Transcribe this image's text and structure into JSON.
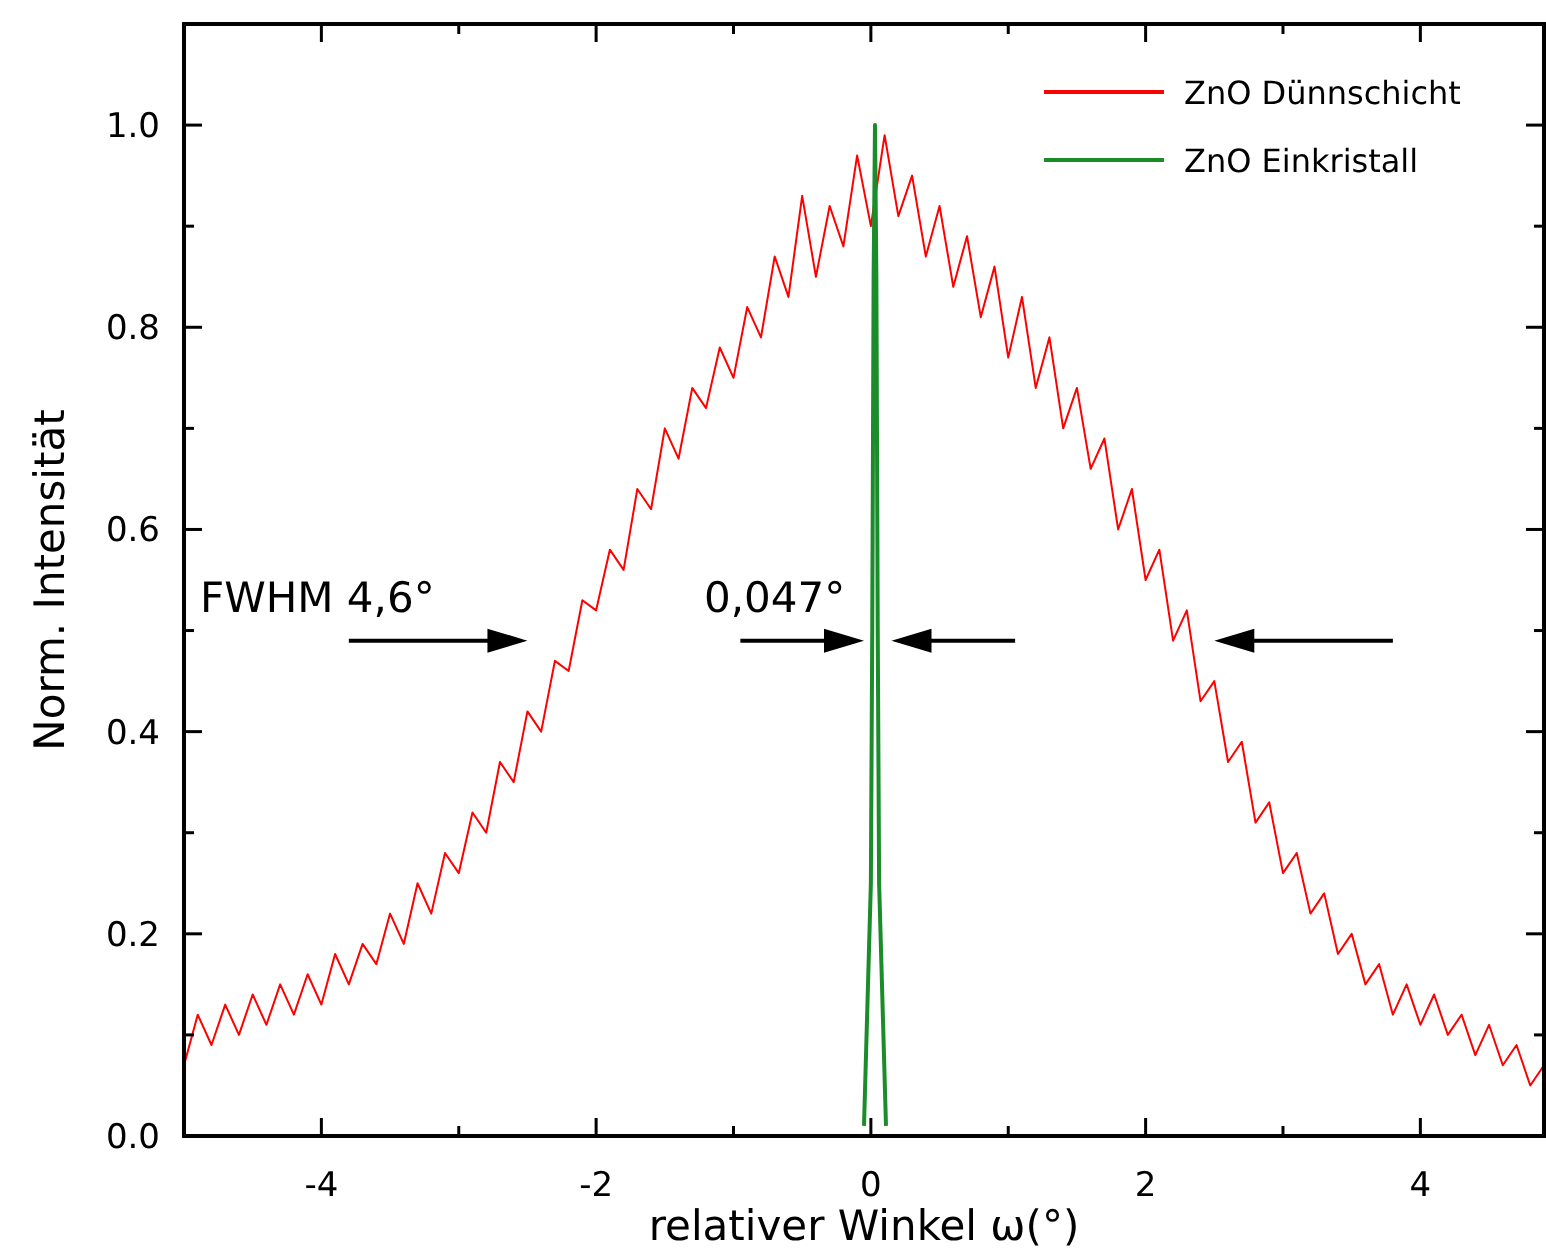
{
  "chart_data": {
    "type": "line",
    "xlabel": "relativer Winkel ω(°)",
    "ylabel": "Norm. Intensität",
    "xlim": [
      -5,
      4.9
    ],
    "ylim": [
      0,
      1.1
    ],
    "xticks": [
      -4,
      {
        "value": -3,
        "label": null
      },
      -2,
      {
        "value": -1,
        "label": null
      },
      0,
      {
        "value": 1,
        "label": null
      },
      2,
      {
        "value": 3,
        "label": null
      },
      4
    ],
    "yticks": [
      {
        "value": 0,
        "label": "0.0"
      },
      {
        "value": 0.1,
        "label": null
      },
      {
        "value": 0.2,
        "label": "0.2"
      },
      {
        "value": 0.3,
        "label": null
      },
      {
        "value": 0.4,
        "label": "0.4"
      },
      {
        "value": 0.5,
        "label": null
      },
      {
        "value": 0.6,
        "label": "0.6"
      },
      {
        "value": 0.7,
        "label": null
      },
      {
        "value": 0.8,
        "label": "0.8"
      },
      {
        "value": 0.9,
        "label": null
      },
      {
        "value": 1.0,
        "label": "1.0"
      }
    ],
    "grid": false,
    "legend": "top right",
    "marker": "none",
    "line_style": "solid",
    "series": [
      {
        "name": "ZnO Dünnschicht",
        "color": "#ff0000",
        "x": [
          -5.0,
          -4.9,
          -4.8,
          -4.7,
          -4.6,
          -4.5,
          -4.4,
          -4.3,
          -4.2,
          -4.1,
          -4.0,
          -3.9,
          -3.8,
          -3.7,
          -3.6,
          -3.5,
          -3.4,
          -3.3,
          -3.2,
          -3.1,
          -3.0,
          -2.9,
          -2.8,
          -2.7,
          -2.6,
          -2.5,
          -2.4,
          -2.3,
          -2.2,
          -2.1,
          -2.0,
          -1.9,
          -1.8,
          -1.7,
          -1.6,
          -1.5,
          -1.4,
          -1.3,
          -1.2,
          -1.1,
          -1.0,
          -0.9,
          -0.8,
          -0.7,
          -0.6,
          -0.5,
          -0.4,
          -0.3,
          -0.2,
          -0.1,
          0.0,
          0.1,
          0.2,
          0.3,
          0.4,
          0.5,
          0.6,
          0.7,
          0.8,
          0.9,
          1.0,
          1.1,
          1.2,
          1.3,
          1.4,
          1.5,
          1.6,
          1.7,
          1.8,
          1.9,
          2.0,
          2.1,
          2.2,
          2.3,
          2.4,
          2.5,
          2.6,
          2.7,
          2.8,
          2.9,
          3.0,
          3.1,
          3.2,
          3.3,
          3.4,
          3.5,
          3.6,
          3.7,
          3.8,
          3.9,
          4.0,
          4.1,
          4.2,
          4.3,
          4.4,
          4.5,
          4.6,
          4.7,
          4.8,
          4.9
        ],
        "values": [
          0.07,
          0.12,
          0.09,
          0.13,
          0.1,
          0.14,
          0.11,
          0.15,
          0.12,
          0.16,
          0.13,
          0.18,
          0.15,
          0.19,
          0.17,
          0.22,
          0.19,
          0.25,
          0.22,
          0.28,
          0.26,
          0.32,
          0.3,
          0.37,
          0.35,
          0.42,
          0.4,
          0.47,
          0.46,
          0.53,
          0.52,
          0.58,
          0.56,
          0.64,
          0.62,
          0.7,
          0.67,
          0.74,
          0.72,
          0.78,
          0.75,
          0.82,
          0.79,
          0.87,
          0.83,
          0.93,
          0.85,
          0.92,
          0.88,
          0.97,
          0.9,
          0.99,
          0.91,
          0.95,
          0.87,
          0.92,
          0.84,
          0.89,
          0.81,
          0.86,
          0.77,
          0.83,
          0.74,
          0.79,
          0.7,
          0.74,
          0.66,
          0.69,
          0.6,
          0.64,
          0.55,
          0.58,
          0.49,
          0.52,
          0.43,
          0.45,
          0.37,
          0.39,
          0.31,
          0.33,
          0.26,
          0.28,
          0.22,
          0.24,
          0.18,
          0.2,
          0.15,
          0.17,
          0.12,
          0.15,
          0.11,
          0.14,
          0.1,
          0.12,
          0.08,
          0.11,
          0.07,
          0.09,
          0.05,
          0.07
        ]
      },
      {
        "name": "ZnO Einkristall",
        "color": "#1a8c2a",
        "x": [
          -0.05,
          0,
          0.01,
          0.02,
          0.03,
          0.04,
          0.05,
          0.06,
          0.11
        ],
        "values": [
          0.01,
          0.25,
          0.5,
          0.85,
          1.0,
          0.85,
          0.5,
          0.25,
          0.01
        ]
      }
    ],
    "annotations": [
      "FWHM 4,6°",
      "0,047°"
    ]
  }
}
